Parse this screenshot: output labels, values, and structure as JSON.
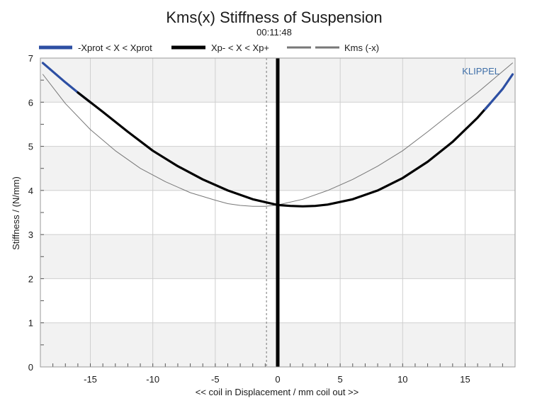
{
  "chart_data": {
    "type": "line",
    "title": "Kms(x) Stiffness of Suspension",
    "subtitle": "00:11:48",
    "xlabel": "<< coil in Displacement / mm coil out >>",
    "ylabel": "Stiffness / (N/mm)",
    "xlim": [
      -19.0,
      19.0
    ],
    "ylim": [
      0,
      7
    ],
    "xticks": [
      -15,
      -10,
      -5,
      0,
      5,
      10,
      15
    ],
    "yticks": [
      0,
      1,
      2,
      3,
      4,
      5,
      6,
      7
    ],
    "grid": true,
    "legend_position": "top",
    "watermark": "KLIPPEL",
    "series": [
      {
        "name": "-Xprot < X < Xprot",
        "color": "#2d4fa3",
        "style": "thick",
        "x": [
          -18.8,
          -17.0,
          -16.0,
          -15.0
        ],
        "y": [
          6.89,
          6.45,
          6.22,
          6.0
        ]
      },
      {
        "name": "Xp- < X < Xp+",
        "color": "#000000",
        "style": "thick",
        "x": [
          -16.0,
          -15.0,
          -14.0,
          -12.0,
          -10.0,
          -8.0,
          -6.0,
          -4.0,
          -2.0,
          0.0,
          1.0,
          2.0,
          3.0,
          4.0,
          6.0,
          8.0,
          10.0,
          12.0,
          14.0,
          16.0,
          17.0
        ],
        "y": [
          6.22,
          6.0,
          5.78,
          5.33,
          4.9,
          4.55,
          4.25,
          4.0,
          3.8,
          3.67,
          3.65,
          3.64,
          3.65,
          3.68,
          3.8,
          4.0,
          4.28,
          4.65,
          5.1,
          5.65,
          5.97
        ]
      },
      {
        "name": "",
        "color": "#2d4fa3",
        "style": "thick",
        "x": [
          16.6,
          17.0,
          18.0,
          18.8
        ],
        "y": [
          5.84,
          5.97,
          6.3,
          6.63
        ]
      },
      {
        "name": "Kms (-x)",
        "color": "#777777",
        "style": "thin",
        "x": [
          -18.8,
          -17.0,
          -15.0,
          -13.0,
          -11.0,
          -9.0,
          -7.0,
          -5.0,
          -4.0,
          -3.0,
          -2.0,
          -1.0,
          0.0,
          2.0,
          4.0,
          6.0,
          8.0,
          10.0,
          12.0,
          14.0,
          16.0,
          18.8
        ],
        "y": [
          6.63,
          5.97,
          5.38,
          4.9,
          4.5,
          4.2,
          3.95,
          3.78,
          3.7,
          3.66,
          3.64,
          3.64,
          3.67,
          3.8,
          4.0,
          4.25,
          4.55,
          4.9,
          5.33,
          5.78,
          6.22,
          6.89
        ]
      }
    ],
    "vertical_markers": [
      {
        "x": 0.0,
        "style": "thick",
        "color": "#000000"
      },
      {
        "x": -0.9,
        "style": "dashed",
        "color": "#777777"
      }
    ]
  }
}
